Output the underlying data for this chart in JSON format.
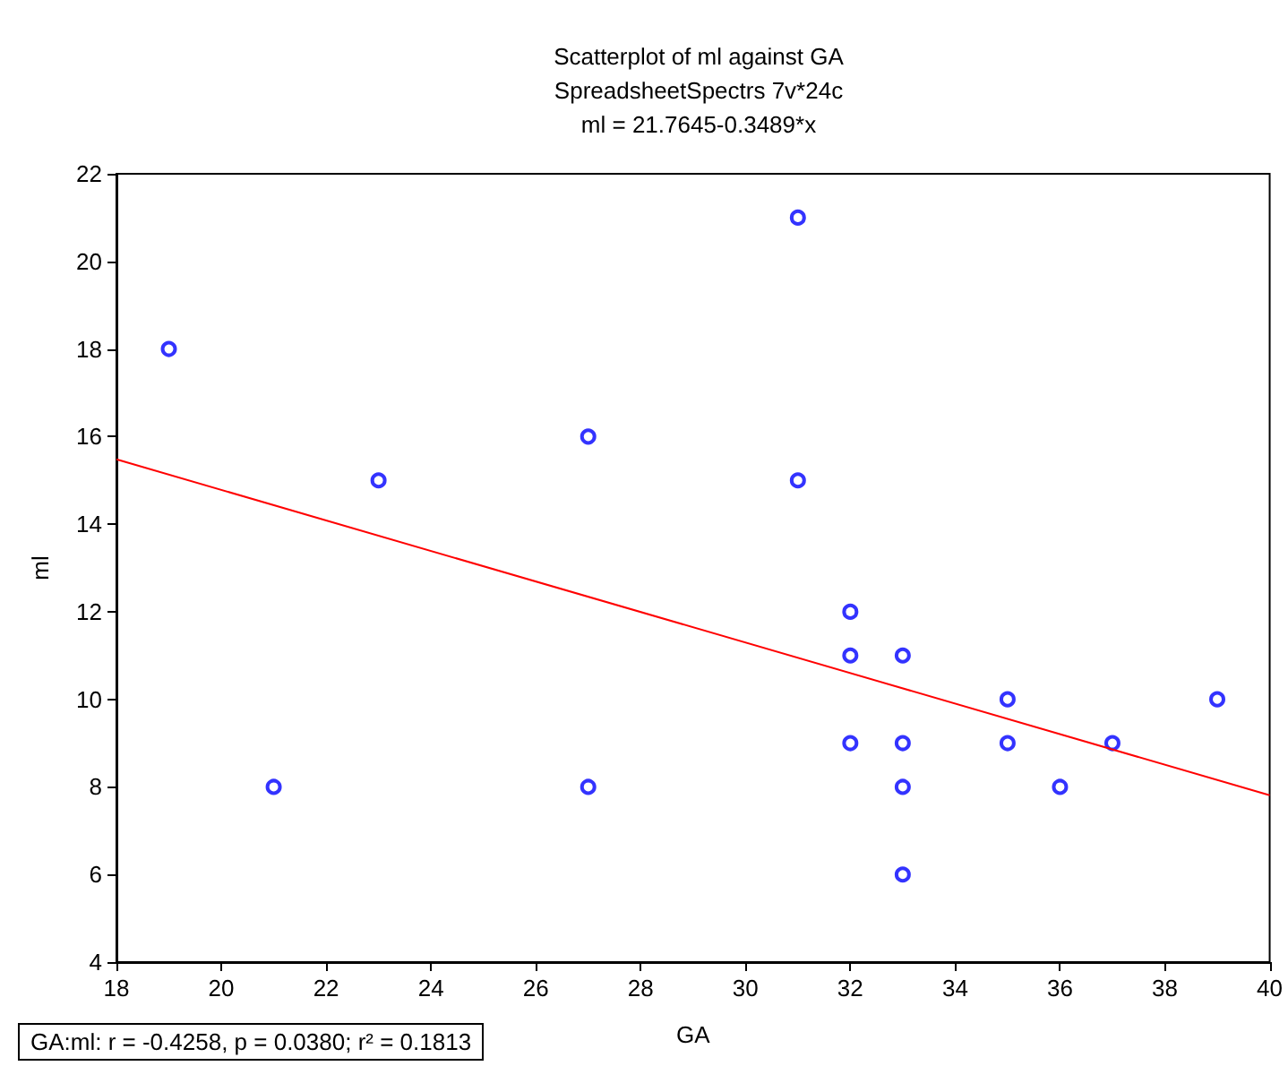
{
  "chart_data": {
    "type": "scatter",
    "title": "Scatterplot of ml against GA",
    "subtitle": "SpreadsheetSpectrs 7v*24c\nml = 21.7645-0.3489*x",
    "xlabel": "GA",
    "ylabel": "ml",
    "annotations": [
      "GA:ml:   r = -0.4258, p = 0.0380; r² = 0.1813"
    ],
    "series": [
      {
        "color": "#0000ff",
        "marker": "circle",
        "x": [
          19,
          21,
          23,
          27,
          27,
          31,
          31,
          32,
          32,
          32,
          33,
          33,
          33,
          33,
          35,
          35,
          36,
          37,
          39
        ],
        "values": [
          18,
          8,
          15,
          16,
          8,
          21,
          15,
          12,
          11,
          9,
          11,
          9,
          8,
          6,
          10,
          9,
          8,
          9,
          10
        ]
      },
      {
        "type": "line",
        "color": "#ff0000",
        "marker": "none",
        "x": [
          18,
          40
        ],
        "values": [
          15.48,
          7.81
        ]
      }
    ],
    "xlim": [
      18,
      40
    ],
    "xticks": [
      18,
      20,
      22,
      24,
      26,
      28,
      30,
      32,
      34,
      36,
      38,
      40
    ],
    "ylim": [
      4,
      22
    ],
    "yticks": [
      4,
      6,
      8,
      10,
      12,
      14,
      16,
      18,
      20,
      22
    ],
    "grid": false
  }
}
